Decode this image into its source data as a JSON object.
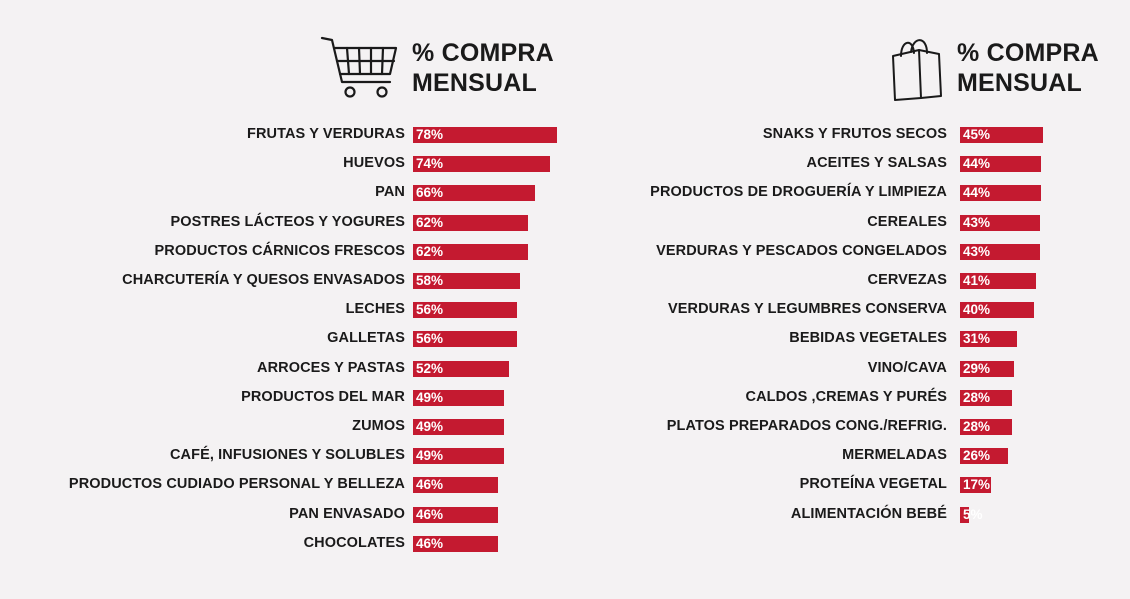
{
  "colors": {
    "bar": "#c41a30",
    "background": "#f4f2f3",
    "text": "#1a1a1a"
  },
  "chart_data": [
    {
      "type": "bar",
      "orientation": "horizontal",
      "icon": "shopping-cart-icon",
      "title_lines": [
        "% COMPRA",
        "MENSUAL"
      ],
      "xlim": [
        0,
        100
      ],
      "grid": false,
      "categories": [
        "FRUTAS Y VERDURAS",
        "HUEVOS",
        "PAN",
        "POSTRES LÁCTEOS Y YOGURES",
        "PRODUCTOS CÁRNICOS FRESCOS",
        "CHARCUTERÍA Y QUESOS ENVASADOS",
        "LECHES",
        "GALLETAS",
        "ARROCES Y PASTAS",
        "PRODUCTOS DEL MAR",
        "ZUMOS",
        "CAFÉ, INFUSIONES Y SOLUBLES",
        "PRODUCTOS CUDIADO PERSONAL Y BELLEZA",
        "PAN ENVASADO",
        "CHOCOLATES"
      ],
      "values": [
        78,
        74,
        66,
        62,
        62,
        58,
        56,
        56,
        52,
        49,
        49,
        49,
        46,
        46,
        46
      ],
      "value_labels": [
        "78%",
        "74%",
        "66%",
        "62%",
        "62%",
        "58%",
        "56%",
        "56%",
        "52%",
        "49%",
        "49%",
        "49%",
        "46%",
        "46%",
        "46%"
      ]
    },
    {
      "type": "bar",
      "orientation": "horizontal",
      "icon": "shopping-bag-icon",
      "title_lines": [
        "% COMPRA",
        "MENSUAL"
      ],
      "xlim": [
        0,
        100
      ],
      "grid": false,
      "categories": [
        "SNAKS Y FRUTOS SECOS",
        "ACEITES Y SALSAS",
        "PRODUCTOS DE DROGUERÍA Y LIMPIEZA",
        "CEREALES",
        "VERDURAS Y PESCADOS CONGELADOS",
        "CERVEZAS",
        "VERDURAS Y LEGUMBRES CONSERVA",
        "BEBIDAS VEGETALES",
        "VINO/CAVA",
        "CALDOS ,CREMAS Y PURÉS",
        "PLATOS PREPARADOS CONG./REFRIG.",
        "MERMELADAS",
        "PROTEÍNA VEGETAL",
        "ALIMENTACIÓN BEBÉ"
      ],
      "values": [
        45,
        44,
        44,
        43,
        43,
        41,
        40,
        31,
        29,
        28,
        28,
        26,
        17,
        5
      ],
      "value_labels": [
        "45%",
        "44%",
        "44%",
        "43%",
        "43%",
        "41%",
        "40%",
        "31%",
        "29%",
        "28%",
        "28%",
        "26%",
        "17%",
        "5%"
      ]
    }
  ]
}
